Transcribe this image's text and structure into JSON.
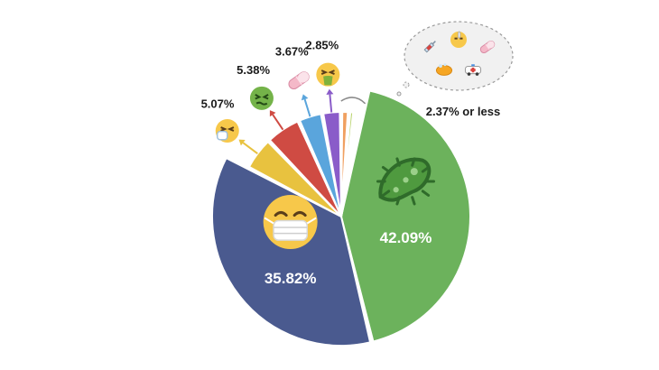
{
  "chart_data": {
    "type": "pie",
    "title": "",
    "slices": [
      {
        "label": "42.09%",
        "value": 42.09,
        "color": "#6cb25c",
        "icon": "microbe-icon",
        "label_style": "inner"
      },
      {
        "label": "35.82%",
        "value": 35.82,
        "color": "#4a5a8f",
        "icon": "face-with-medical-mask-icon",
        "label_style": "inner"
      },
      {
        "label": "5.07%",
        "value": 5.07,
        "color": "#e8c23f",
        "icon": "sneezing-face-icon",
        "label_style": "outer"
      },
      {
        "label": "5.38%",
        "value": 5.38,
        "color": "#cf4b43",
        "icon": "nauseated-face-icon",
        "label_style": "outer"
      },
      {
        "label": "3.67%",
        "value": 3.67,
        "color": "#5aa5dc",
        "icon": "pill-icon",
        "label_style": "outer"
      },
      {
        "label": "2.85%",
        "value": 2.85,
        "color": "#8a5cc9",
        "icon": "vomiting-face-icon",
        "label_style": "outer"
      },
      {
        "label": "",
        "value": 1.2,
        "color": "#f0a060"
      },
      {
        "label": "",
        "value": 0.8,
        "color": "#b8d36a"
      },
      {
        "label": "",
        "value": 0.6,
        "color": "#8fd1a8"
      },
      {
        "label": "",
        "value": 0.4,
        "color": "#8bc27d"
      },
      {
        "label": "",
        "value": 0.3,
        "color": "#c9a0d8"
      }
    ],
    "small_slices_label": "2.37% or less",
    "small_slices_icons": [
      "syringe-icon",
      "face-with-thermometer-icon",
      "pill-icon",
      "soap-icon",
      "ambulance-icon"
    ],
    "legend": "none"
  }
}
